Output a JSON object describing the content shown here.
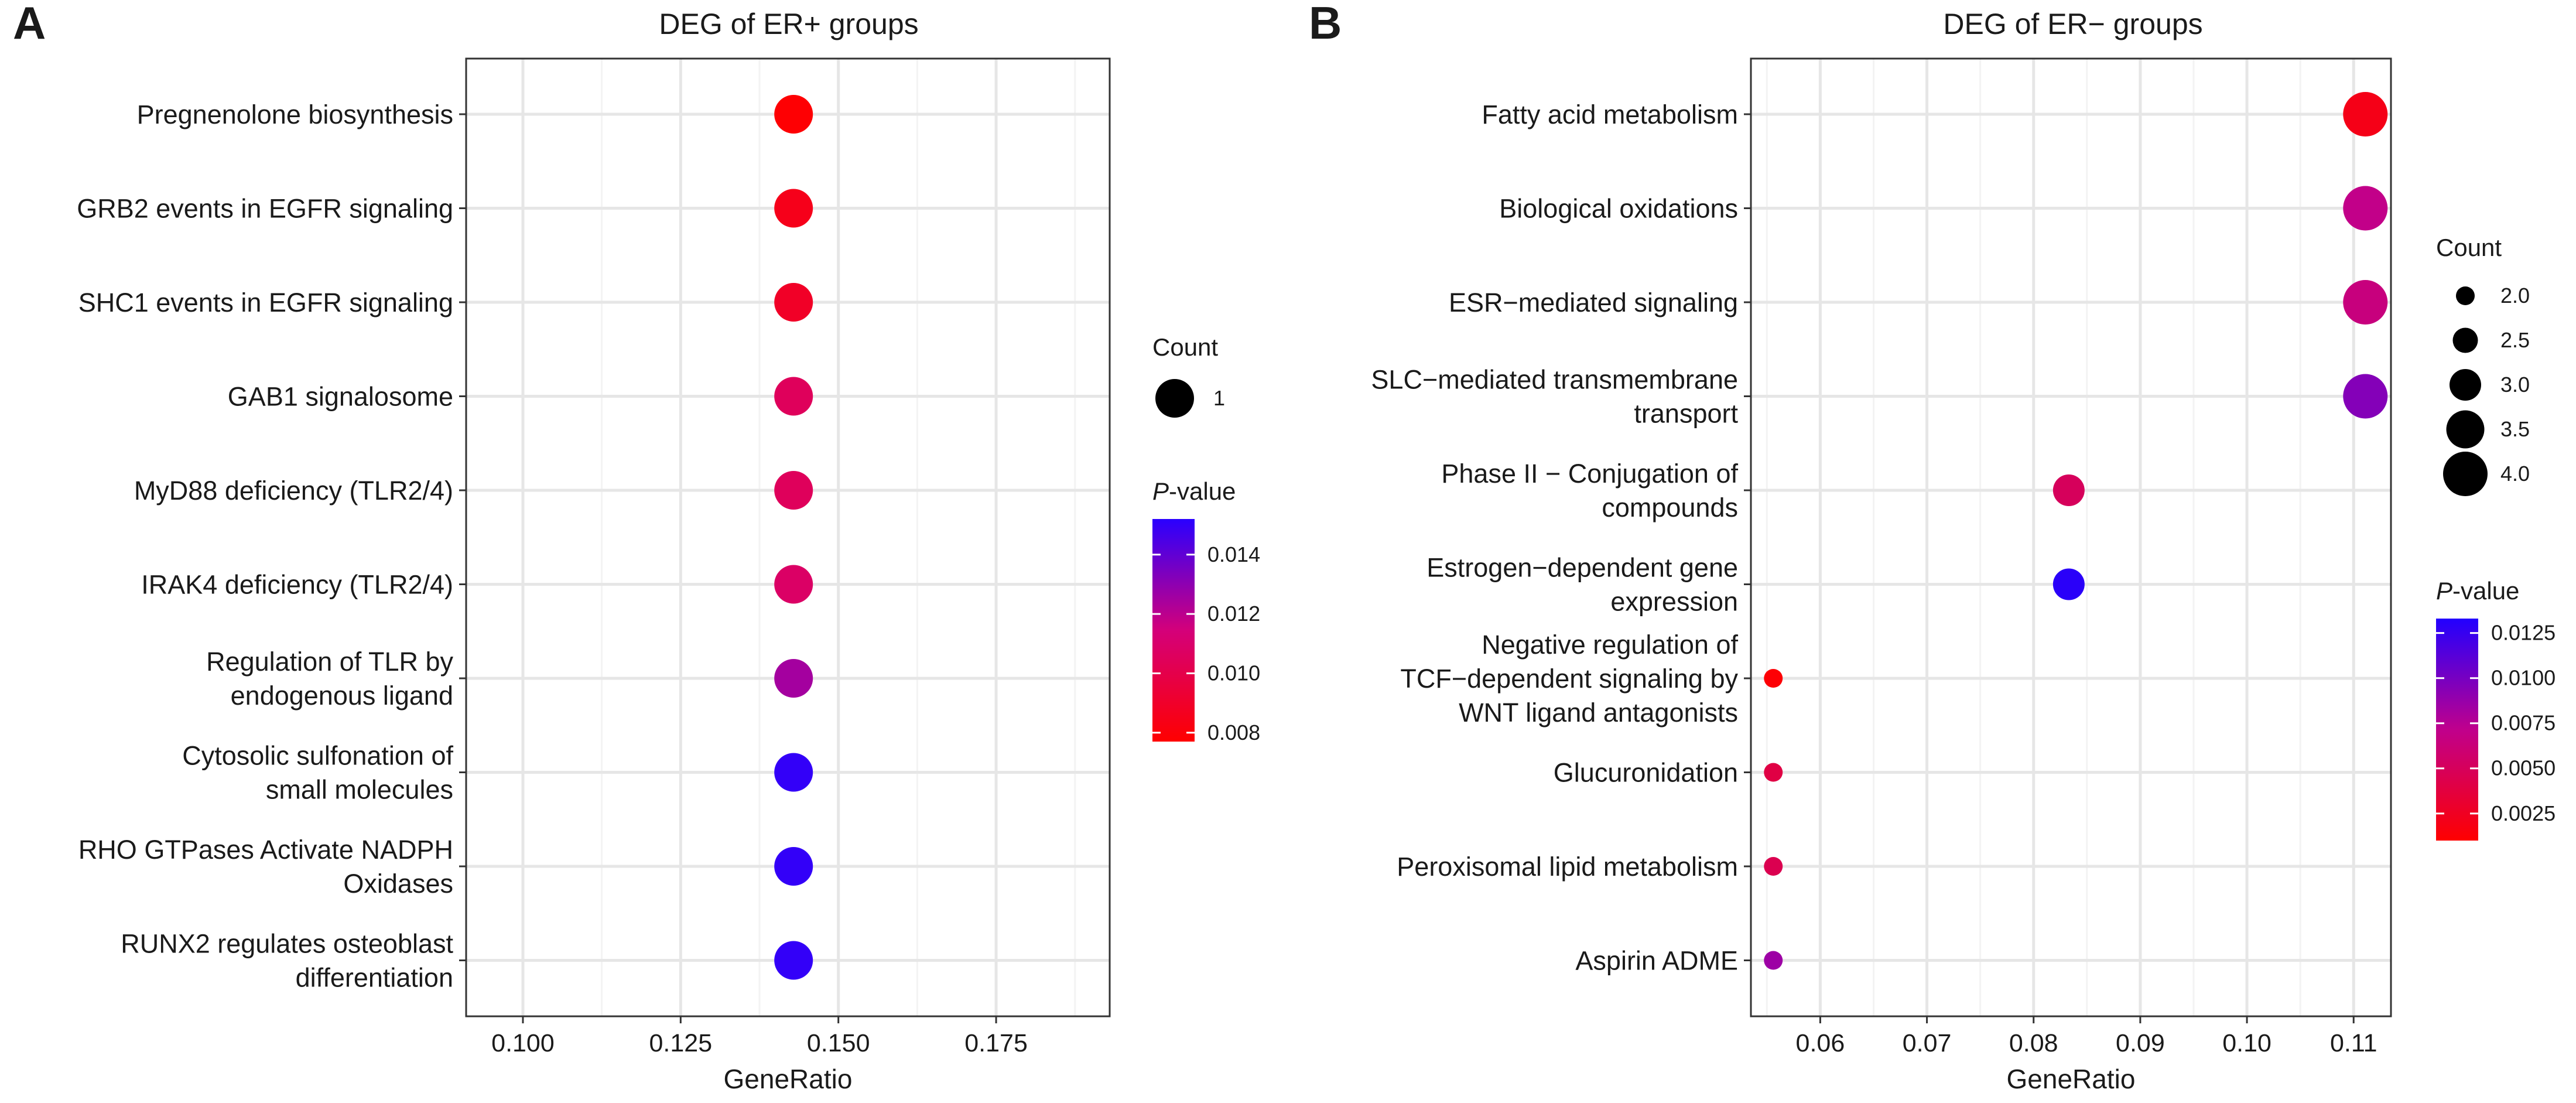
{
  "chart_data": [
    {
      "panel_label": "A",
      "type": "scatter",
      "title": "DEG of ER+ groups",
      "xlabel": "GeneRatio",
      "ylabel": "",
      "xlim": [
        0.091,
        0.193
      ],
      "x_ticks": [
        0.1,
        0.125,
        0.15,
        0.175
      ],
      "x_tick_labels": [
        "0.100",
        "0.125",
        "0.150",
        "0.175"
      ],
      "grid": true,
      "categories": [
        [
          "Pregnenolone biosynthesis"
        ],
        [
          "GRB2 events in EGFR signaling"
        ],
        [
          "SHC1 events in EGFR signaling"
        ],
        [
          "GAB1 signalosome"
        ],
        [
          "MyD88 deficiency (TLR2/4)"
        ],
        [
          "IRAK4 deficiency (TLR2/4)"
        ],
        [
          "Regulation of TLR by",
          "endogenous ligand"
        ],
        [
          "Cytosolic sulfonation of",
          "small molecules"
        ],
        [
          "RHO GTPases Activate NADPH",
          "Oxidases"
        ],
        [
          "RUNX2 regulates osteoblast",
          "differentiation"
        ]
      ],
      "points": [
        {
          "x": 0.1429,
          "count": 1,
          "pvalue": 0.0078
        },
        {
          "x": 0.1429,
          "count": 1,
          "pvalue": 0.0085
        },
        {
          "x": 0.1429,
          "count": 1,
          "pvalue": 0.0089
        },
        {
          "x": 0.1429,
          "count": 1,
          "pvalue": 0.0105
        },
        {
          "x": 0.1429,
          "count": 1,
          "pvalue": 0.0105
        },
        {
          "x": 0.1429,
          "count": 1,
          "pvalue": 0.0108
        },
        {
          "x": 0.1429,
          "count": 1,
          "pvalue": 0.0125
        },
        {
          "x": 0.1429,
          "count": 1,
          "pvalue": 0.015
        },
        {
          "x": 0.1429,
          "count": 1,
          "pvalue": 0.015
        },
        {
          "x": 0.1429,
          "count": 1,
          "pvalue": 0.015
        }
      ],
      "size_legend": {
        "title": "Count",
        "entries": [
          {
            "value": 1,
            "label": "1"
          }
        ]
      },
      "color_legend": {
        "title_italic": "P",
        "title_rest": "-value",
        "min": 0.0077,
        "max": 0.0152,
        "low_color": "#ff0000",
        "high_color": "#0000ff",
        "ticks": [
          {
            "value": 0.014,
            "label": "0.014"
          },
          {
            "value": 0.012,
            "label": "0.012"
          },
          {
            "value": 0.01,
            "label": "0.010"
          },
          {
            "value": 0.008,
            "label": "0.008"
          }
        ]
      }
    },
    {
      "panel_label": "B",
      "type": "scatter",
      "title": "DEG of ER− groups",
      "xlabel": "GeneRatio",
      "ylabel": "",
      "xlim": [
        0.0535,
        0.1135
      ],
      "x_ticks": [
        0.06,
        0.07,
        0.08,
        0.09,
        0.1,
        0.11
      ],
      "x_tick_labels": [
        "0.06",
        "0.07",
        "0.08",
        "0.09",
        "0.10",
        "0.11"
      ],
      "grid": true,
      "categories": [
        [
          "Fatty acid metabolism"
        ],
        [
          "Biological oxidations"
        ],
        [
          "ESR−mediated signaling"
        ],
        [
          "SLC−mediated transmembrane",
          "transport"
        ],
        [
          "Phase II − Conjugation of",
          "compounds"
        ],
        [
          "Estrogen−dependent gene",
          "expression"
        ],
        [
          "Negative regulation of",
          "TCF−dependent signaling by",
          "WNT ligand antagonists"
        ],
        [
          "Glucuronidation"
        ],
        [
          "Peroxisomal lipid metabolism"
        ],
        [
          "Aspirin ADME"
        ]
      ],
      "points": [
        {
          "x": 0.1111,
          "count": 4,
          "pvalue": 0.002
        },
        {
          "x": 0.1111,
          "count": 4,
          "pvalue": 0.007
        },
        {
          "x": 0.1111,
          "count": 4,
          "pvalue": 0.0065
        },
        {
          "x": 0.1111,
          "count": 4,
          "pvalue": 0.0095
        },
        {
          "x": 0.0833,
          "count": 3,
          "pvalue": 0.005
        },
        {
          "x": 0.0833,
          "count": 3,
          "pvalue": 0.013
        },
        {
          "x": 0.0556,
          "count": 2,
          "pvalue": 0.0012
        },
        {
          "x": 0.0556,
          "count": 2,
          "pvalue": 0.004
        },
        {
          "x": 0.0556,
          "count": 2,
          "pvalue": 0.0045
        },
        {
          "x": 0.0556,
          "count": 2,
          "pvalue": 0.0085
        }
      ],
      "size_legend": {
        "title": "Count",
        "entries": [
          {
            "value": 2.0,
            "label": "2.0"
          },
          {
            "value": 2.5,
            "label": "2.5"
          },
          {
            "value": 3.0,
            "label": "3.0"
          },
          {
            "value": 3.5,
            "label": "3.5"
          },
          {
            "value": 4.0,
            "label": "4.0"
          }
        ]
      },
      "color_legend": {
        "title_italic": "P",
        "title_rest": "-value",
        "min": 0.001,
        "max": 0.0133,
        "low_color": "#ff0000",
        "high_color": "#0000ff",
        "ticks": [
          {
            "value": 0.0125,
            "label": "0.0125"
          },
          {
            "value": 0.01,
            "label": "0.0100"
          },
          {
            "value": 0.0075,
            "label": "0.0075"
          },
          {
            "value": 0.005,
            "label": "0.0050"
          },
          {
            "value": 0.0025,
            "label": "0.0025"
          }
        ]
      }
    }
  ]
}
